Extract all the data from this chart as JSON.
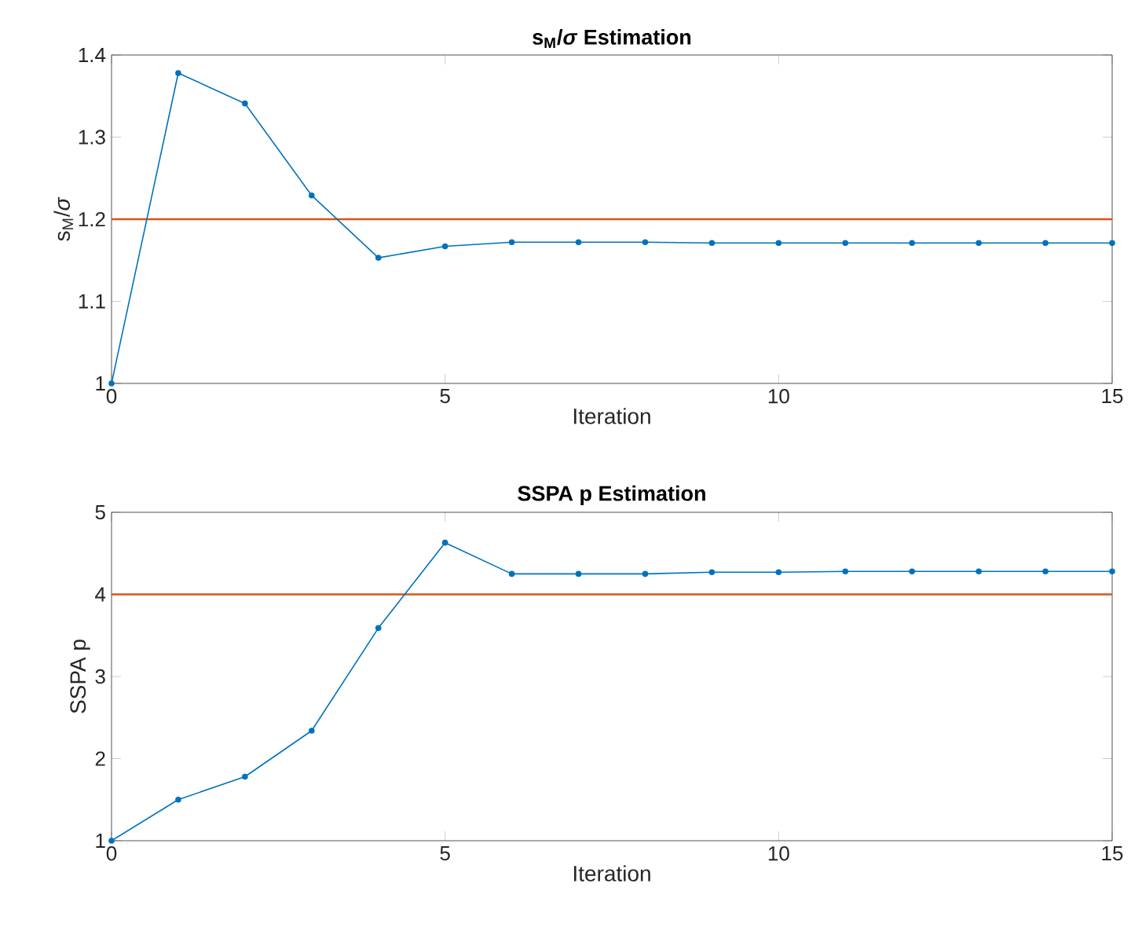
{
  "chart_data": [
    {
      "type": "line",
      "title": "**s$_{M}$/*σ* Estimation**",
      "xlabel": "Iteration",
      "ylabel": "s$_{M}$/*σ*",
      "x": [
        0,
        1,
        2,
        3,
        4,
        5,
        6,
        7,
        8,
        9,
        10,
        11,
        12,
        13,
        14,
        15
      ],
      "series": [
        {
          "color": "#0072bd",
          "values": [
            1.0,
            1.378,
            1.341,
            1.229,
            1.153,
            1.167,
            1.172,
            1.172,
            1.172,
            1.171,
            1.171,
            1.171,
            1.171,
            1.171,
            1.171,
            1.171
          ]
        }
      ],
      "xlim": [
        0,
        15
      ],
      "ylim": [
        1,
        1.4
      ],
      "xticks": [
        0,
        5,
        10,
        15
      ],
      "yticks": [
        1,
        1.1,
        1.2,
        1.3,
        1.4
      ],
      "marker": "circle",
      "ref_lines": [
        {
          "axis": "y",
          "value": 1.2,
          "color": "#d95319"
        }
      ]
    },
    {
      "type": "line",
      "title": "**SSPA p Estimation**",
      "xlabel": "Iteration",
      "ylabel": "SSPA p",
      "x": [
        0,
        1,
        2,
        3,
        4,
        5,
        6,
        7,
        8,
        9,
        10,
        11,
        12,
        13,
        14,
        15
      ],
      "series": [
        {
          "color": "#0072bd",
          "values": [
            1.0,
            1.5,
            1.78,
            2.34,
            3.59,
            4.63,
            4.25,
            4.25,
            4.25,
            4.27,
            4.27,
            4.28,
            4.28,
            4.28,
            4.28,
            4.28
          ]
        }
      ],
      "xlim": [
        0,
        15
      ],
      "ylim": [
        1,
        5
      ],
      "xticks": [
        0,
        5,
        10,
        15
      ],
      "yticks": [
        1,
        2,
        3,
        4,
        5
      ],
      "marker": "circle",
      "ref_lines": [
        {
          "axis": "y",
          "value": 4,
          "color": "#d95319"
        }
      ]
    }
  ]
}
